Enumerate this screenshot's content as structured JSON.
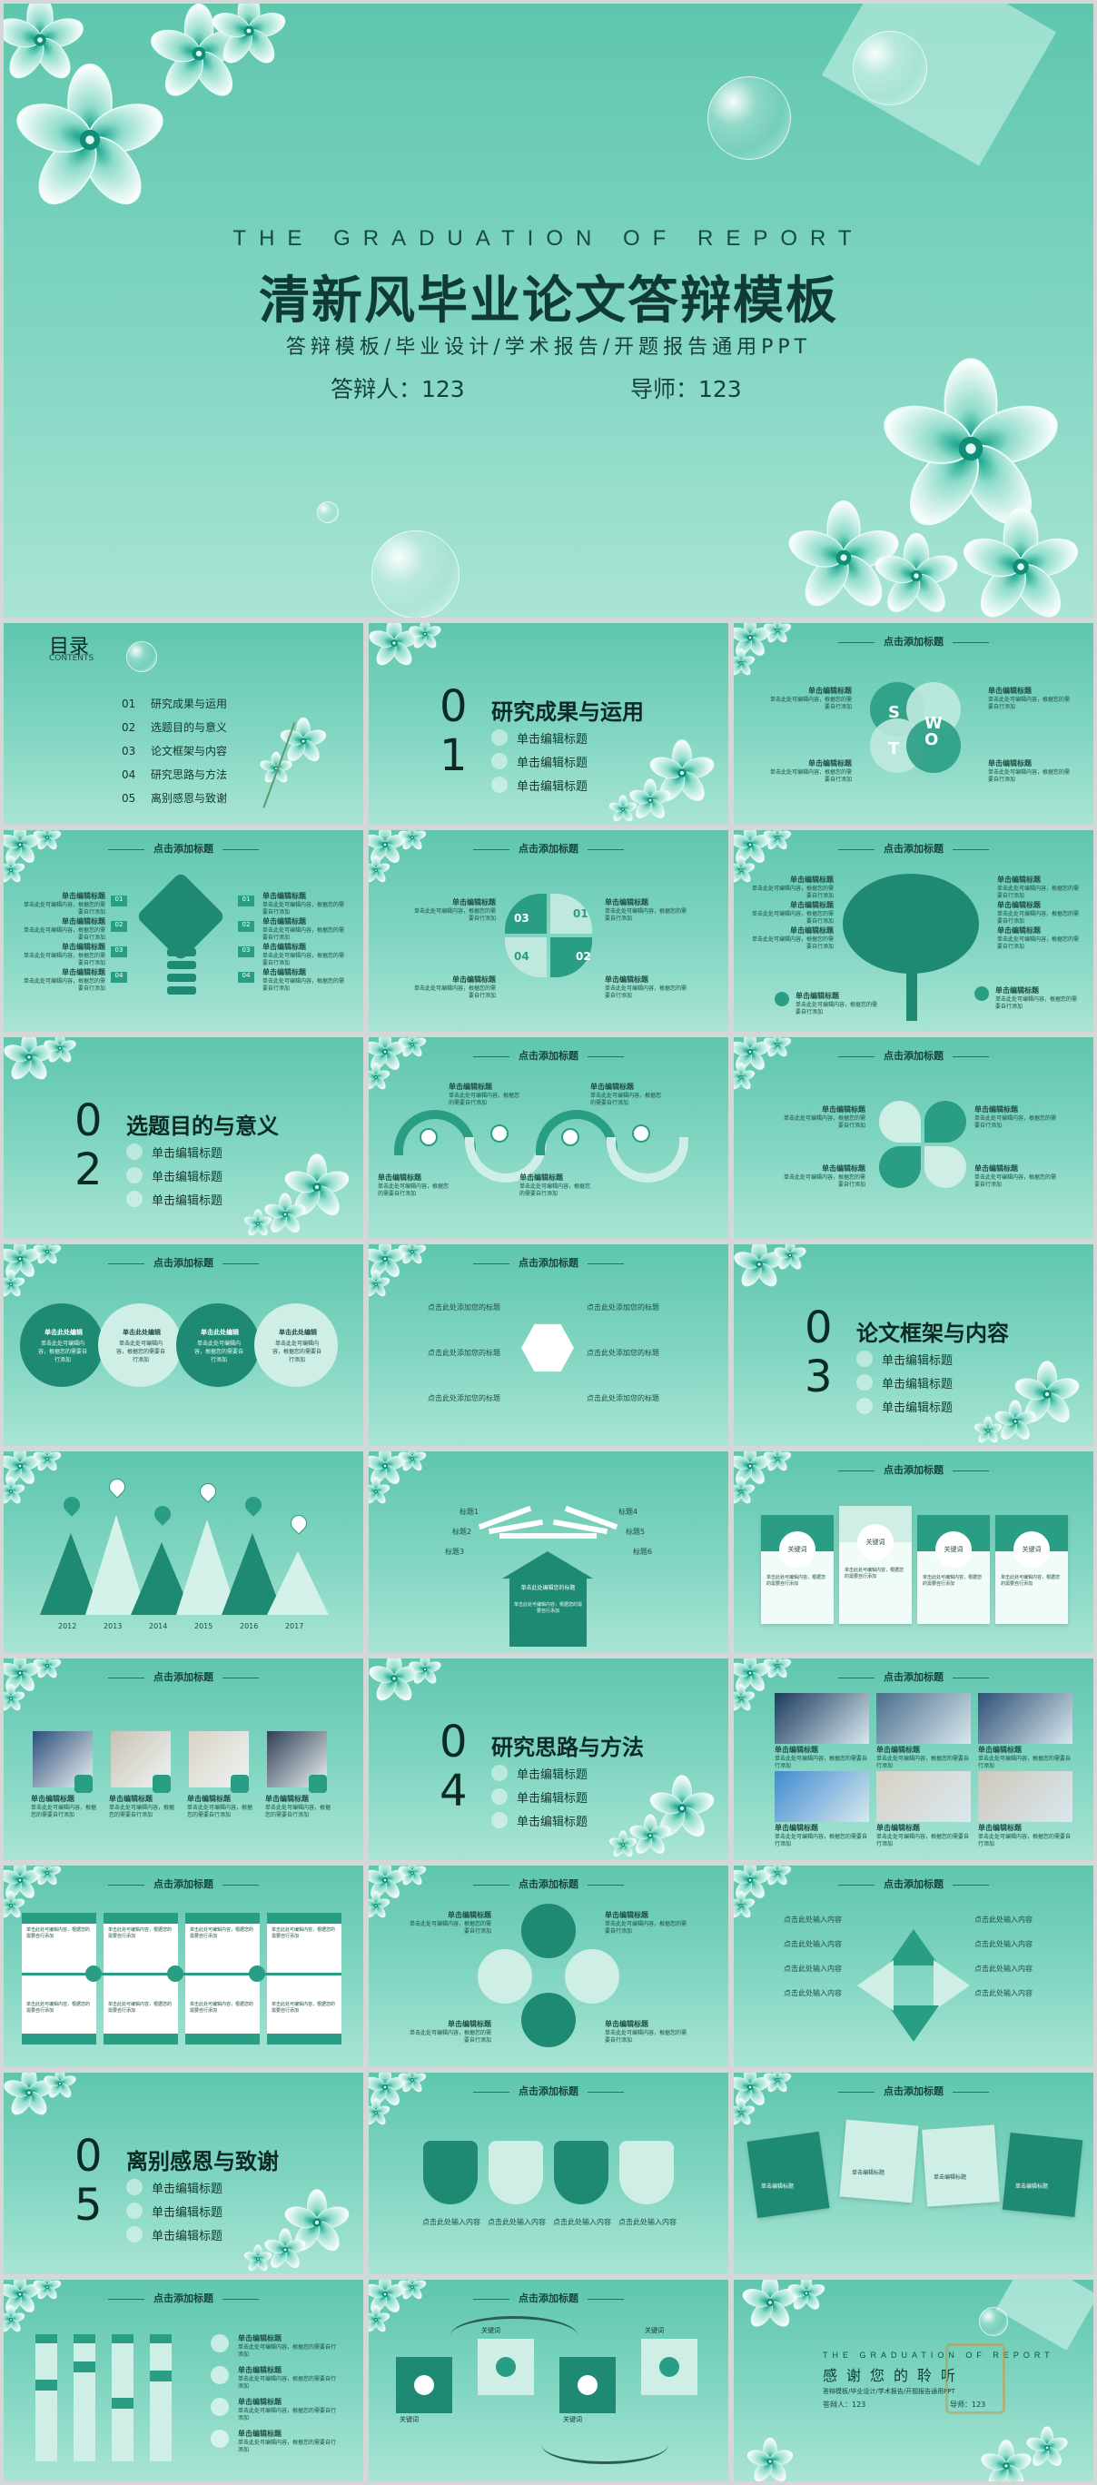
{
  "hero": {
    "en_title": "THE GRADUATION OF REPORT",
    "title": "清新风毕业论文答辩模板",
    "subtitle": "答辩模板/毕业设计/学术报告/开题报告通用PPT",
    "presenter": "答辩人：123",
    "advisor": "导师：123"
  },
  "toc": {
    "title": "目录",
    "title_en": "CONTENTS",
    "items": [
      {
        "no": "01",
        "label": "研究成果与运用"
      },
      {
        "no": "02",
        "label": "选题目的与意义"
      },
      {
        "no": "03",
        "label": "论文框架与内容"
      },
      {
        "no": "04",
        "label": "研究思路与方法"
      },
      {
        "no": "05",
        "label": "离别感恩与致谢"
      }
    ]
  },
  "sections": [
    {
      "no_a": "0",
      "no_b": "1",
      "title": "研究成果与运用",
      "items": [
        "单击编辑标题",
        "单击编辑标题",
        "单击编辑标题"
      ]
    },
    {
      "no_a": "0",
      "no_b": "2",
      "title": "选题目的与意义",
      "items": [
        "单击编辑标题",
        "单击编辑标题",
        "单击编辑标题"
      ]
    },
    {
      "no_a": "0",
      "no_b": "3",
      "title": "论文框架与内容",
      "items": [
        "单击编辑标题",
        "单击编辑标题",
        "单击编辑标题"
      ]
    },
    {
      "no_a": "0",
      "no_b": "4",
      "title": "研究思路与方法",
      "items": [
        "单击编辑标题",
        "单击编辑标题",
        "单击编辑标题"
      ]
    },
    {
      "no_a": "0",
      "no_b": "5",
      "title": "离别感恩与致谢",
      "items": [
        "单击编辑标题",
        "单击编辑标题",
        "单击编辑标题"
      ]
    }
  ],
  "slide_header": "点击添加标题",
  "edit_title": "单击编辑标题",
  "edit_title_short": "单击此处编辑",
  "body_text": "单击此处可编辑内容，根据您的需要自行添加",
  "click_add_text": "点击此处添加您的标题",
  "click_add_short": "点击此处输入内容",
  "keyword": "关键词",
  "swot": [
    "S",
    "W",
    "T",
    "O"
  ],
  "numbers4": [
    "01",
    "02",
    "03",
    "04"
  ],
  "years": [
    "2012",
    "2013",
    "2014",
    "2015",
    "2016",
    "2017"
  ],
  "arrow_labels": [
    "标题1",
    "标题2",
    "标题3",
    "标题4",
    "标题5",
    "标题6"
  ],
  "arrow_center": "单击此处编辑您的标题",
  "thanks": {
    "en_title": "THE GRADUATION OF REPORT",
    "title": "感谢您的聆听",
    "subtitle": "答辩模板/毕业设计/学术报告/开题报告通用PPT",
    "presenter": "答辩人：123",
    "advisor": "导师：123"
  },
  "colors": {
    "primary": "#2a9d85",
    "dark": "#1f8a73",
    "light": "#cfeee6",
    "background": "#7fd4c0"
  }
}
